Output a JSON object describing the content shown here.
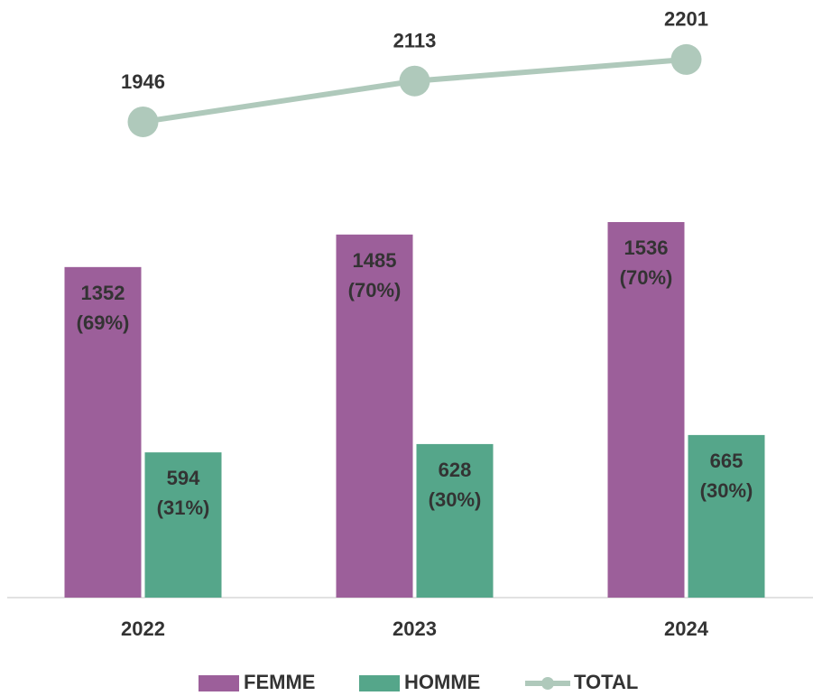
{
  "chart_data": {
    "type": "bar-line",
    "categories": [
      "2022",
      "2023",
      "2024"
    ],
    "series": [
      {
        "name": "FEMME",
        "color": "#9c5f9a",
        "type": "bar",
        "values": [
          1352,
          1485,
          1536
        ],
        "value_labels": [
          "1352 (69%)",
          "1485 (70%)",
          "1536 (70%)"
        ]
      },
      {
        "name": "HOMME",
        "color": "#55a68a",
        "type": "bar",
        "values": [
          594,
          628,
          665
        ],
        "value_labels": [
          "594 (31%)",
          "628 (30%)",
          "665 (30%)"
        ]
      },
      {
        "name": "TOTAL",
        "color": "#afc9bb",
        "type": "line",
        "values": [
          1946,
          2113,
          2201
        ]
      }
    ],
    "ylim": [
      0,
      2400
    ]
  }
}
